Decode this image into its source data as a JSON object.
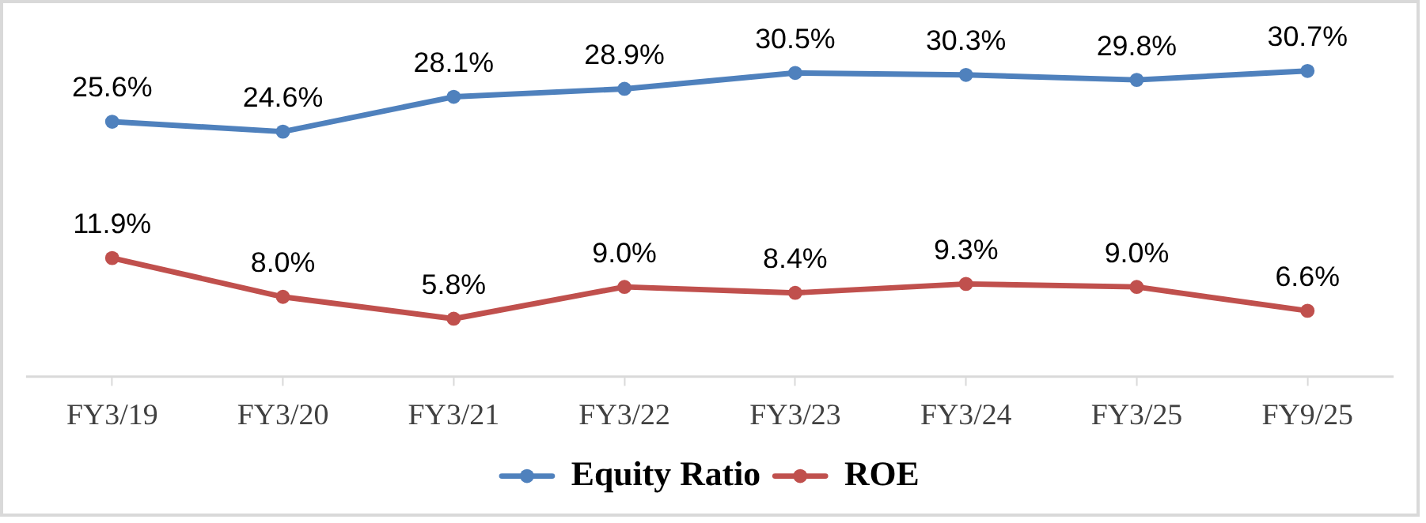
{
  "chart_data": {
    "type": "line",
    "categories": [
      "FY3/19",
      "FY3/20",
      "FY3/21",
      "FY3/22",
      "FY3/23",
      "FY3/24",
      "FY3/25",
      "FY9/25"
    ],
    "series": [
      {
        "name": "Equity Ratio",
        "color": "#4f81bd",
        "values": [
          25.6,
          24.6,
          28.1,
          28.9,
          30.5,
          30.3,
          29.8,
          30.7
        ],
        "value_labels": [
          "25.6%",
          "24.6%",
          "28.1%",
          "28.9%",
          "30.5%",
          "30.3%",
          "29.8%",
          "30.7%"
        ]
      },
      {
        "name": "ROE",
        "color": "#c0504d",
        "values": [
          11.9,
          8.0,
          5.8,
          9.0,
          8.4,
          9.3,
          9.0,
          6.6
        ],
        "value_labels": [
          "11.9%",
          "8.0%",
          "5.8%",
          "9.0%",
          "8.4%",
          "9.3%",
          "9.0%",
          "6.6%"
        ]
      }
    ],
    "tick_labels": "x",
    "grid": false,
    "legend": "bottom",
    "marker": "circle",
    "line_style": "solid"
  }
}
